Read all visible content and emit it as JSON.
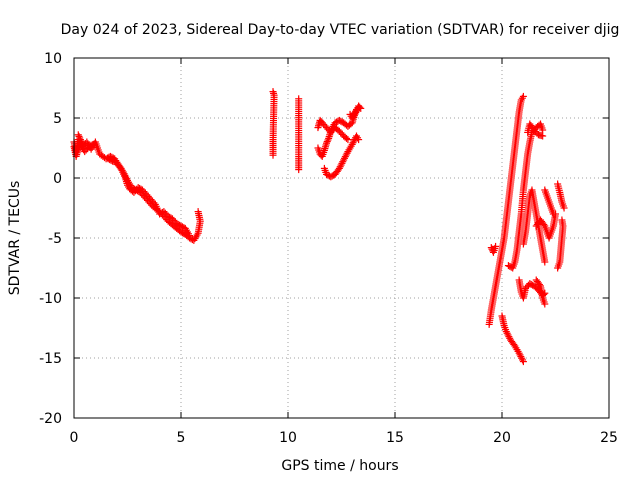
{
  "chart_data": {
    "type": "scatter",
    "title": "Day 024 of 2023, Sidereal Day-to-day VTEC variation (SDTVAR) for receiver djig",
    "xlabel": "GPS time / hours",
    "ylabel": "SDTVAR / TECUs",
    "xlim": [
      0,
      25
    ],
    "ylim": [
      -20,
      10
    ],
    "xticks": [
      "0",
      "5",
      "10",
      "15",
      "20",
      "25"
    ],
    "yticks": [
      "10",
      "5",
      "0",
      "-5",
      "-10",
      "-15",
      "-20"
    ],
    "grid": true,
    "marker": "plus",
    "color": "#ff0000",
    "segments": [
      [
        [
          0.0,
          3.0
        ],
        [
          0.1,
          2.2
        ],
        [
          0.2,
          3.2
        ],
        [
          0.4,
          2.6
        ],
        [
          0.6,
          3.0
        ],
        [
          0.8,
          2.4
        ],
        [
          1.0,
          3.0
        ],
        [
          1.2,
          2.0
        ],
        [
          1.5,
          1.6
        ],
        [
          1.7,
          1.8
        ],
        [
          1.9,
          1.6
        ],
        [
          2.1,
          1.0
        ],
        [
          2.3,
          0.5
        ],
        [
          2.5,
          -0.2
        ],
        [
          2.7,
          -0.8
        ],
        [
          2.9,
          -1.0
        ],
        [
          3.1,
          -1.2
        ],
        [
          3.3,
          -1.6
        ],
        [
          3.5,
          -2.0
        ],
        [
          3.7,
          -2.4
        ],
        [
          4.0,
          -2.8
        ],
        [
          4.2,
          -3.2
        ],
        [
          4.4,
          -3.6
        ],
        [
          4.6,
          -3.9
        ],
        [
          4.8,
          -4.2
        ],
        [
          5.0,
          -4.5
        ],
        [
          5.2,
          -4.7
        ],
        [
          5.4,
          -5.0
        ],
        [
          5.6,
          -5.2
        ],
        [
          5.8,
          -4.6
        ],
        [
          5.9,
          -3.6
        ],
        [
          5.8,
          -2.8
        ]
      ],
      [
        [
          0.0,
          2.6
        ],
        [
          0.1,
          1.8
        ],
        [
          0.2,
          2.4
        ],
        [
          0.3,
          2.8
        ],
        [
          0.5,
          2.2
        ],
        [
          0.7,
          2.6
        ],
        [
          0.9,
          2.8
        ]
      ],
      [
        [
          0.2,
          3.6
        ],
        [
          0.3,
          3.2
        ],
        [
          0.4,
          2.8
        ]
      ],
      [
        [
          1.6,
          1.6
        ],
        [
          1.8,
          1.4
        ],
        [
          2.0,
          1.3
        ],
        [
          2.2,
          0.8
        ],
        [
          2.4,
          0.0
        ],
        [
          2.5,
          -0.6
        ],
        [
          2.6,
          -0.9
        ],
        [
          2.8,
          -1.2
        ],
        [
          3.0,
          -0.8
        ],
        [
          3.2,
          -1.0
        ],
        [
          3.4,
          -1.4
        ],
        [
          3.6,
          -1.8
        ],
        [
          3.8,
          -2.2
        ],
        [
          4.0,
          -3.0
        ],
        [
          4.2,
          -2.8
        ],
        [
          4.4,
          -3.2
        ],
        [
          4.6,
          -3.4
        ],
        [
          4.8,
          -3.8
        ],
        [
          5.0,
          -4.0
        ],
        [
          5.2,
          -4.2
        ],
        [
          5.4,
          -4.8
        ]
      ],
      [
        [
          9.3,
          7.2
        ],
        [
          9.35,
          6.9
        ],
        [
          9.3,
          3.2
        ],
        [
          9.3,
          1.9
        ]
      ],
      [
        [
          10.5,
          6.6
        ],
        [
          10.5,
          4.5
        ],
        [
          10.5,
          1.8
        ],
        [
          10.5,
          0.7
        ]
      ],
      [
        [
          11.4,
          2.5
        ],
        [
          11.5,
          2.0
        ],
        [
          11.6,
          1.8
        ],
        [
          11.7,
          2.3
        ],
        [
          11.8,
          2.9
        ],
        [
          11.9,
          3.3
        ],
        [
          12.0,
          3.9
        ],
        [
          12.1,
          4.3
        ],
        [
          12.2,
          4.6
        ],
        [
          12.4,
          4.8
        ],
        [
          12.6,
          4.6
        ],
        [
          12.8,
          4.3
        ],
        [
          13.0,
          4.6
        ],
        [
          13.1,
          5.2
        ],
        [
          13.2,
          5.6
        ],
        [
          13.3,
          6.0
        ],
        [
          13.4,
          5.8
        ]
      ],
      [
        [
          11.4,
          4.2
        ],
        [
          11.5,
          4.8
        ],
        [
          11.6,
          4.6
        ],
        [
          11.8,
          4.2
        ],
        [
          12.0,
          3.8
        ],
        [
          12.2,
          4.2
        ],
        [
          12.4,
          3.9
        ],
        [
          12.6,
          3.5
        ],
        [
          12.8,
          3.2
        ]
      ],
      [
        [
          11.7,
          0.8
        ],
        [
          11.8,
          0.3
        ],
        [
          12.0,
          0.1
        ],
        [
          12.2,
          0.3
        ],
        [
          12.4,
          0.8
        ],
        [
          12.6,
          1.5
        ],
        [
          12.8,
          2.2
        ],
        [
          13.0,
          2.8
        ],
        [
          13.2,
          3.5
        ],
        [
          13.3,
          3.2
        ]
      ],
      [
        [
          12.9,
          5.3
        ],
        [
          13.0,
          5.0
        ],
        [
          13.2,
          5.7
        ]
      ],
      [
        [
          19.4,
          -12.2
        ],
        [
          19.5,
          -11.0
        ],
        [
          19.6,
          -10.0
        ],
        [
          19.7,
          -9.0
        ],
        [
          19.8,
          -8.0
        ],
        [
          19.9,
          -7.0
        ],
        [
          20.0,
          -6.0
        ],
        [
          20.1,
          -5.0
        ],
        [
          20.2,
          -3.5
        ],
        [
          20.3,
          -2.0
        ],
        [
          20.4,
          -0.5
        ],
        [
          20.5,
          1.0
        ],
        [
          20.6,
          2.5
        ],
        [
          20.7,
          4.0
        ],
        [
          20.8,
          5.5
        ],
        [
          20.9,
          6.5
        ],
        [
          21.0,
          6.8
        ]
      ],
      [
        [
          19.5,
          -5.8
        ],
        [
          19.6,
          -6.2
        ],
        [
          19.7,
          -5.7
        ]
      ],
      [
        [
          20.0,
          -11.5
        ],
        [
          20.1,
          -12.3
        ],
        [
          20.2,
          -12.8
        ],
        [
          20.4,
          -13.5
        ],
        [
          20.6,
          -14.0
        ],
        [
          20.8,
          -14.6
        ],
        [
          21.0,
          -15.3
        ]
      ],
      [
        [
          20.3,
          -7.3
        ],
        [
          20.5,
          -7.5
        ],
        [
          20.6,
          -7.0
        ],
        [
          20.7,
          -6.0
        ],
        [
          20.8,
          -4.5
        ],
        [
          20.9,
          -3.0
        ],
        [
          21.0,
          -1.0
        ],
        [
          21.1,
          0.5
        ],
        [
          21.2,
          2.0
        ],
        [
          21.3,
          3.0
        ],
        [
          21.4,
          3.8
        ],
        [
          21.6,
          4.2
        ],
        [
          21.8,
          4.5
        ],
        [
          21.9,
          4.0
        ]
      ],
      [
        [
          20.8,
          -8.5
        ],
        [
          20.9,
          -9.5
        ],
        [
          21.0,
          -10.0
        ],
        [
          21.1,
          -9.2
        ],
        [
          21.3,
          -8.8
        ],
        [
          21.5,
          -9.0
        ],
        [
          21.7,
          -9.3
        ],
        [
          21.9,
          -9.8
        ],
        [
          22.0,
          -9.6
        ]
      ],
      [
        [
          21.0,
          -5.5
        ],
        [
          21.1,
          -4.5
        ],
        [
          21.2,
          -3.0
        ],
        [
          21.3,
          -1.5
        ],
        [
          21.4,
          -1.0
        ],
        [
          21.5,
          -2.0
        ],
        [
          21.6,
          -3.0
        ],
        [
          21.7,
          -4.0
        ],
        [
          21.8,
          -5.0
        ],
        [
          21.9,
          -6.0
        ],
        [
          22.0,
          -7.0
        ]
      ],
      [
        [
          21.2,
          3.8
        ],
        [
          21.3,
          4.5
        ],
        [
          21.5,
          4.0
        ],
        [
          21.7,
          3.6
        ],
        [
          21.9,
          3.5
        ]
      ],
      [
        [
          21.6,
          -8.5
        ],
        [
          21.8,
          -9.0
        ],
        [
          21.9,
          -10.0
        ],
        [
          22.0,
          -10.5
        ]
      ],
      [
        [
          21.6,
          -4.0
        ],
        [
          21.8,
          -3.5
        ],
        [
          22.0,
          -4.0
        ],
        [
          22.2,
          -5.0
        ],
        [
          22.4,
          -4.0
        ],
        [
          22.5,
          -3.0
        ]
      ],
      [
        [
          22.0,
          -1.0
        ],
        [
          22.2,
          -2.0
        ],
        [
          22.4,
          -3.0
        ]
      ],
      [
        [
          22.6,
          -7.5
        ],
        [
          22.7,
          -7.0
        ],
        [
          22.75,
          -6.0
        ],
        [
          22.8,
          -5.0
        ],
        [
          22.85,
          -4.0
        ],
        [
          22.8,
          -3.5
        ]
      ],
      [
        [
          22.6,
          -0.5
        ],
        [
          22.7,
          -1.2
        ],
        [
          22.8,
          -2.0
        ],
        [
          22.9,
          -2.5
        ]
      ]
    ]
  }
}
